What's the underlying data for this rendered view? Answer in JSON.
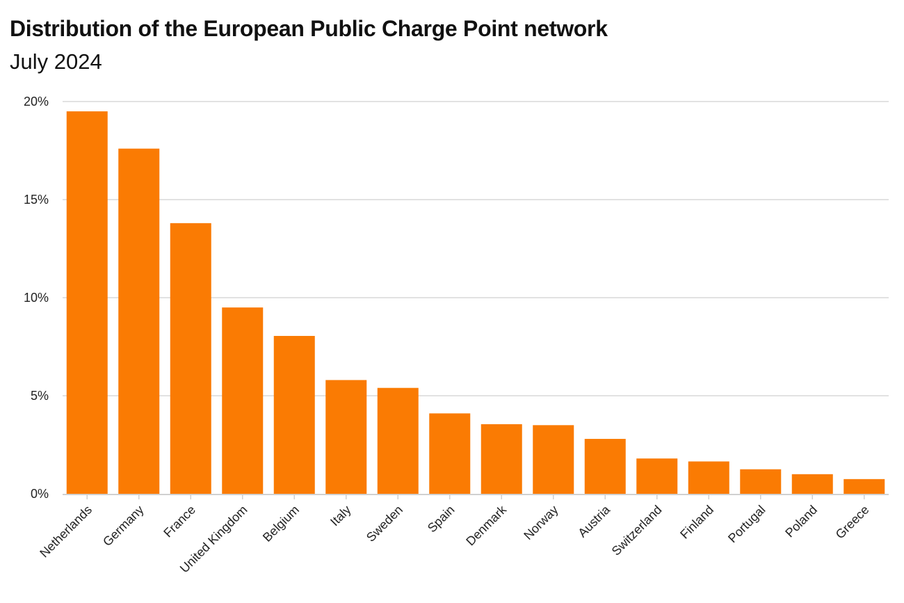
{
  "title": "Distribution of the European Public Charge Point network",
  "subtitle": "July 2024",
  "colors": {
    "bar": "#FA7B03",
    "grid": "#E2E2E2",
    "axis": "#D0D0D0",
    "text": "#222222"
  },
  "chart_data": {
    "type": "bar",
    "title": "Distribution of the European Public Charge Point network",
    "subtitle": "July 2024",
    "xlabel": "",
    "ylabel": "",
    "categories": [
      "Netherlands",
      "Germany",
      "France",
      "United Kingdom",
      "Belgium",
      "Italy",
      "Sweden",
      "Spain",
      "Denmark",
      "Norway",
      "Austria",
      "Switzerland",
      "Finland",
      "Portugal",
      "Poland",
      "Greece"
    ],
    "values": [
      19.5,
      17.6,
      13.8,
      9.5,
      8.05,
      5.8,
      5.4,
      4.1,
      3.55,
      3.5,
      2.8,
      1.8,
      1.65,
      1.25,
      1.0,
      0.75
    ],
    "unit": "%",
    "ylim": [
      0,
      20
    ],
    "yticks": [
      0,
      5,
      10,
      15,
      20
    ],
    "ytick_labels": [
      "0%",
      "5%",
      "10%",
      "15%",
      "20%"
    ],
    "grid": true,
    "legend": "none"
  }
}
